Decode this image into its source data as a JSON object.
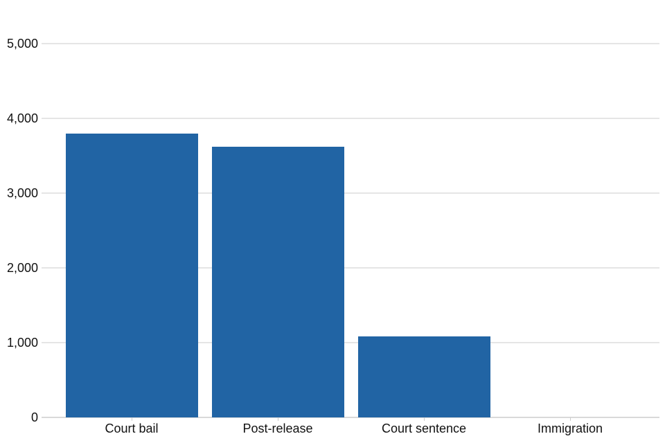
{
  "chart_data": {
    "type": "bar",
    "title": "",
    "xlabel": "",
    "ylabel": "",
    "categories": [
      "Court bail",
      "Post-release",
      "Court sentence",
      "Immigration"
    ],
    "values": [
      3800,
      3620,
      1080,
      0
    ],
    "ylim": [
      0,
      5000
    ],
    "yticks": [
      {
        "value": 0,
        "label": "0"
      },
      {
        "value": 1000,
        "label": "1,000"
      },
      {
        "value": 2000,
        "label": "2,000"
      },
      {
        "value": 3000,
        "label": "3,000"
      },
      {
        "value": 4000,
        "label": "4,000"
      },
      {
        "value": 5000,
        "label": "5,000"
      }
    ],
    "grid": "horizontal",
    "legend": "none",
    "bar_color": "#2164a4",
    "gridline_color": "#e5e5e5",
    "baseline_color": "#d9d9d9",
    "tick_color": "#cccccc",
    "text_color": "#111111",
    "background_color": "#ffffff"
  }
}
